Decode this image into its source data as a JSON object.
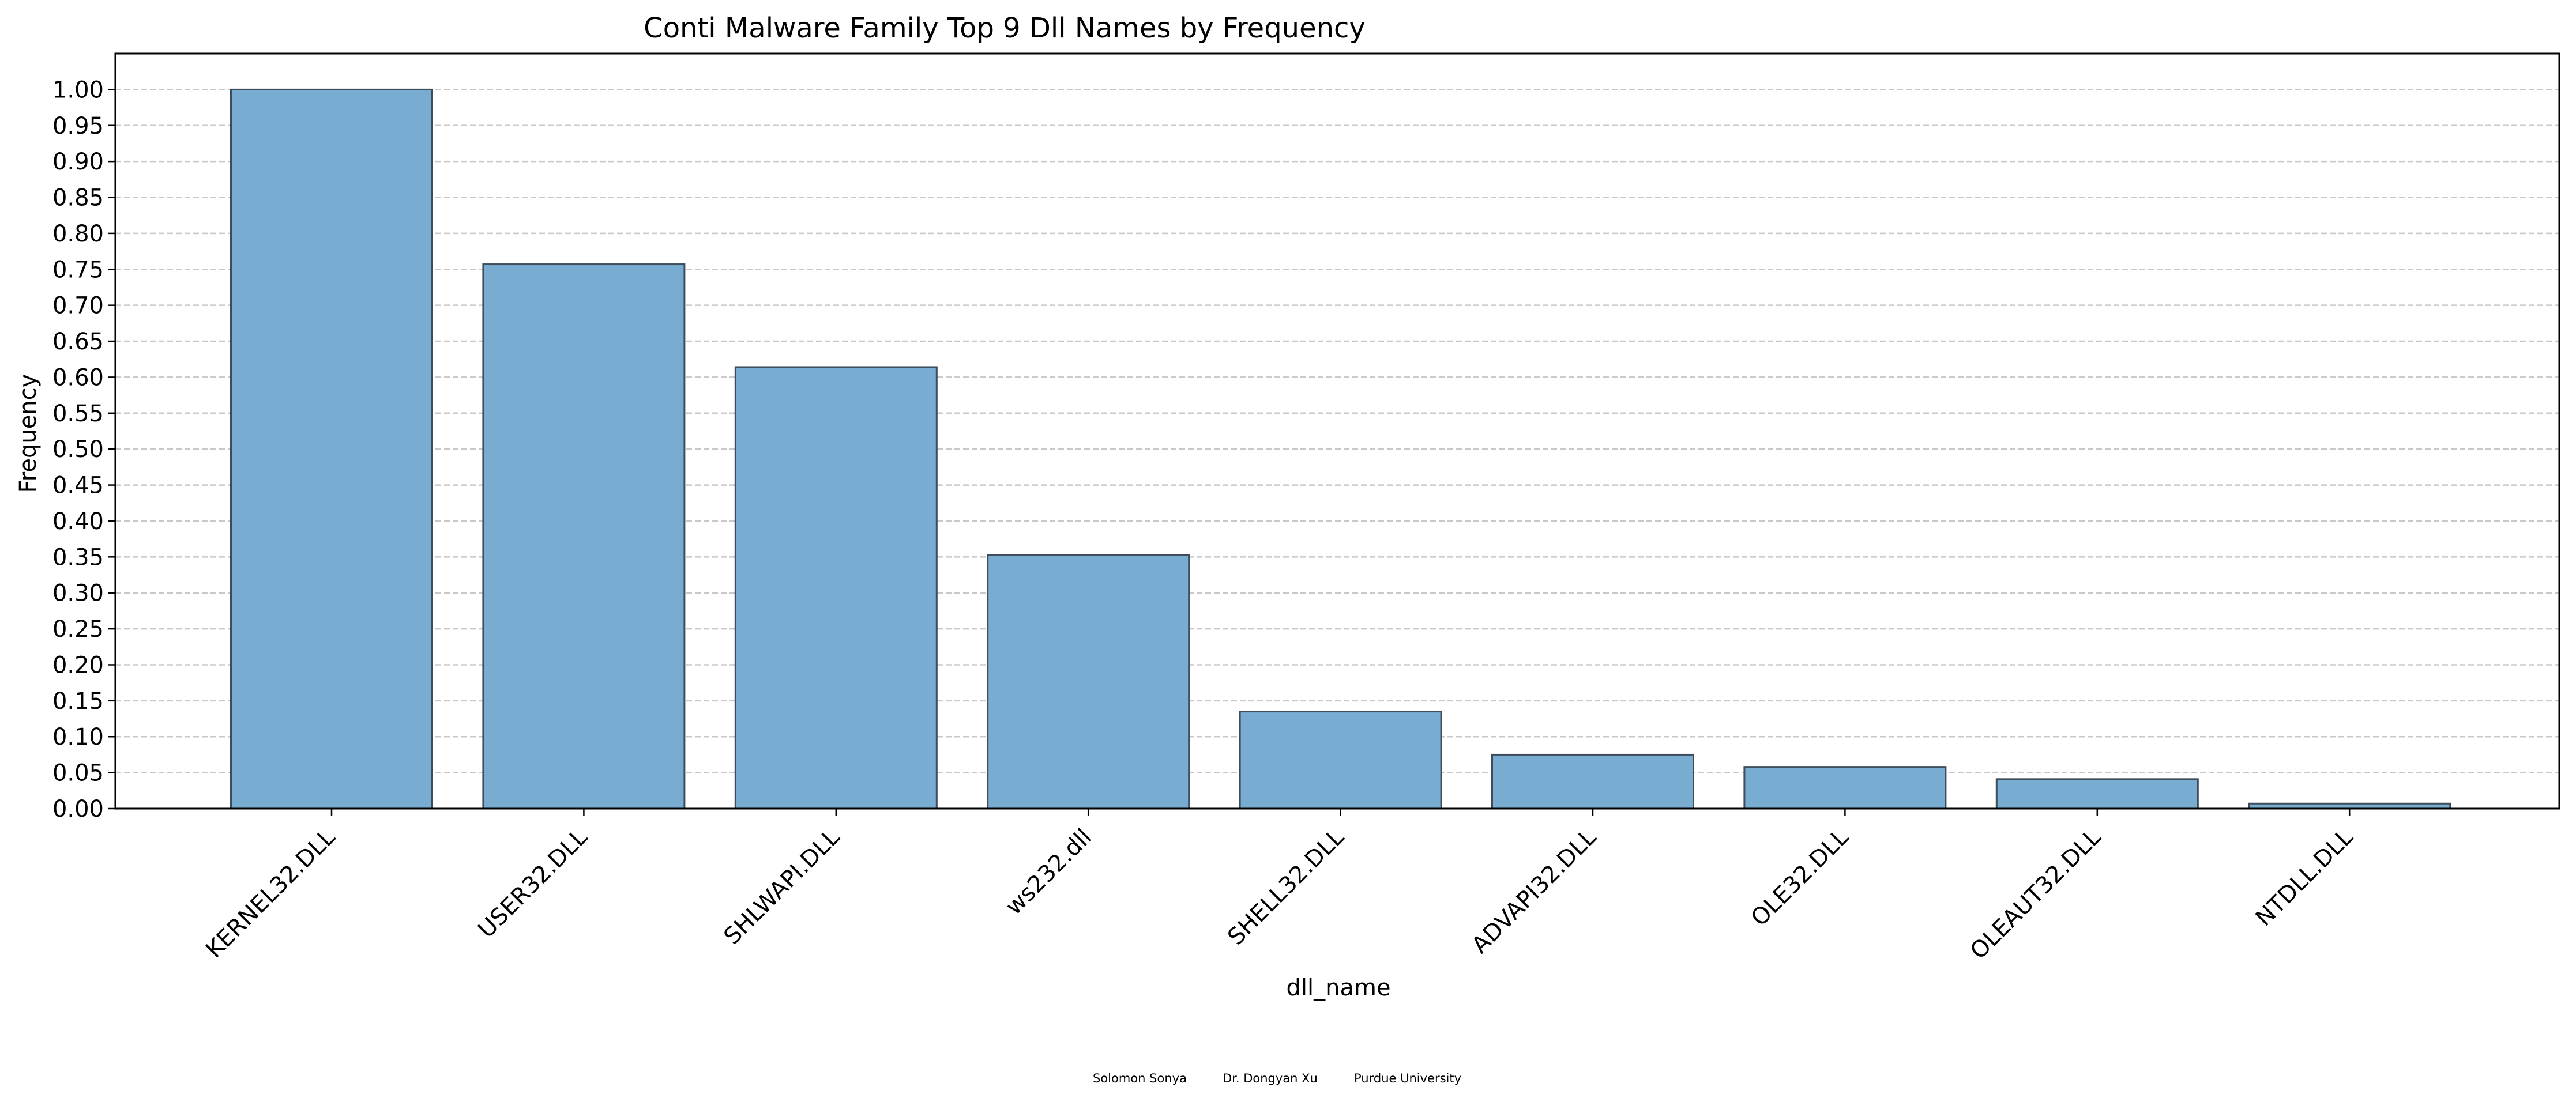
{
  "chart_data": {
    "type": "bar",
    "title": "Conti Malware Family Top 9 Dll Names by Frequency",
    "xlabel": "dll_name",
    "ylabel": "Frequency",
    "categories": [
      "KERNEL32.DLL",
      "USER32.DLL",
      "SHLWAPI.DLL",
      "ws232.dll",
      "SHELL32.DLL",
      "ADVAPI32.DLL",
      "OLE32.DLL",
      "OLEAUT32.DLL",
      "NTDLL.DLL"
    ],
    "values": [
      1.0,
      0.757,
      0.614,
      0.353,
      0.135,
      0.075,
      0.058,
      0.041,
      0.007
    ],
    "ylim": [
      0,
      1.05
    ],
    "yticks": [
      "0.00",
      "0.05",
      "0.10",
      "0.15",
      "0.20",
      "0.25",
      "0.30",
      "0.35",
      "0.40",
      "0.45",
      "0.50",
      "0.55",
      "0.60",
      "0.65",
      "0.70",
      "0.75",
      "0.80",
      "0.85",
      "0.90",
      "0.95",
      "1.00"
    ],
    "grid": "y, dashed",
    "bar_color": "#78acd0",
    "bar_edge_color": "#3d4d5c",
    "grid_color": "#c8c8c8"
  },
  "credits": {
    "author": "Solomon Sonya",
    "advisor": "Dr. Dongyan Xu",
    "institution": "Purdue University"
  }
}
